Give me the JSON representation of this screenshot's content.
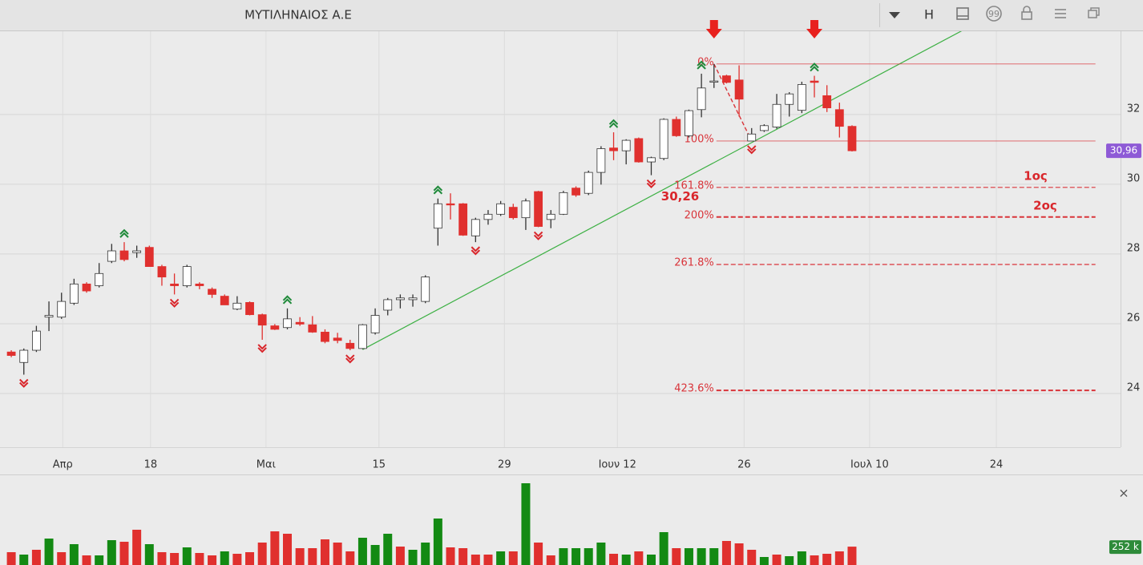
{
  "header": {
    "title": "ΜΥΤΙΛΗΝΑΙΟΣ Α.Ε",
    "button": "H"
  },
  "chart_data": {
    "type": "candlestick",
    "open": [
      25.19,
      24.89,
      25.24,
      26.19,
      26.19,
      26.59,
      27.14,
      27.09,
      27.79,
      28.09,
      28.04,
      28.19,
      27.64,
      27.14,
      27.09,
      27.14,
      26.99,
      26.79,
      26.42,
      26.61,
      26.26,
      25.94,
      25.89,
      26.04,
      25.97,
      25.76,
      25.59,
      25.44,
      25.29,
      25.74,
      26.39,
      26.69,
      26.69,
      26.64,
      28.74,
      29.44,
      29.44,
      28.52,
      28.99,
      29.14,
      29.34,
      29.04,
      29.79,
      28.99,
      29.14,
      29.89,
      29.74,
      30.34,
      31.04,
      30.96,
      31.31,
      30.64,
      30.74,
      31.86,
      31.39,
      32.14,
      32.94,
      33.11,
      32.99,
      31.24,
      31.54,
      31.64,
      32.29,
      32.12,
      32.96,
      32.54,
      32.14,
      31.66
    ],
    "high": [
      25.24,
      25.29,
      25.94,
      26.64,
      26.89,
      27.29,
      27.19,
      27.74,
      28.29,
      28.34,
      28.24,
      28.24,
      27.69,
      27.44,
      27.69,
      27.19,
      27.04,
      26.84,
      26.79,
      26.64,
      26.29,
      25.99,
      26.44,
      26.19,
      26.22,
      25.84,
      25.74,
      25.54,
      25.99,
      26.44,
      26.74,
      26.84,
      26.84,
      27.39,
      29.59,
      29.74,
      29.46,
      29.04,
      29.26,
      29.52,
      29.44,
      29.59,
      29.81,
      29.26,
      29.81,
      29.94,
      30.39,
      31.09,
      31.49,
      31.29,
      31.34,
      30.79,
      31.89,
      31.94,
      32.14,
      33.17,
      33.45,
      33.14,
      33.41,
      31.61,
      31.72,
      32.59,
      32.64,
      32.94,
      33.11,
      32.84,
      32.34,
      31.69
    ],
    "low": [
      25.04,
      24.54,
      25.19,
      25.79,
      26.14,
      26.54,
      26.89,
      27.04,
      27.74,
      27.79,
      27.89,
      27.64,
      27.09,
      26.84,
      27.04,
      26.99,
      26.74,
      26.54,
      26.39,
      26.24,
      25.54,
      25.82,
      25.84,
      25.94,
      25.74,
      25.44,
      25.44,
      25.24,
      25.27,
      25.69,
      26.24,
      26.44,
      26.49,
      26.59,
      28.24,
      28.99,
      28.52,
      28.34,
      28.84,
      29.09,
      28.99,
      28.69,
      28.77,
      28.74,
      29.12,
      29.64,
      29.69,
      29.99,
      30.69,
      30.57,
      30.62,
      30.26,
      30.69,
      31.36,
      31.34,
      31.92,
      32.76,
      32.89,
      31.94,
      31.24,
      31.5,
      31.59,
      31.94,
      32.04,
      32.49,
      32.07,
      31.34,
      30.94
    ],
    "close": [
      25.09,
      25.24,
      25.79,
      26.24,
      26.64,
      27.14,
      26.94,
      27.44,
      28.09,
      27.84,
      28.09,
      27.64,
      27.34,
      27.09,
      27.64,
      27.09,
      26.84,
      26.54,
      26.59,
      26.26,
      25.96,
      25.84,
      26.14,
      25.99,
      25.76,
      25.49,
      25.52,
      25.29,
      25.97,
      26.24,
      26.69,
      26.74,
      26.74,
      27.34,
      29.44,
      29.42,
      28.54,
      28.99,
      29.14,
      29.44,
      29.04,
      29.52,
      28.79,
      29.14,
      29.76,
      29.69,
      30.34,
      31.02,
      30.96,
      31.26,
      30.64,
      30.76,
      31.86,
      31.39,
      32.11,
      32.76,
      32.96,
      32.92,
      32.44,
      31.44,
      31.68,
      32.29,
      32.59,
      32.86,
      32.92,
      32.19,
      31.66,
      30.96
    ],
    "up_color": "#ffffff",
    "down_color": "#e0302e",
    "xlim": [
      -0.9,
      88.4
    ],
    "xticks": [
      {
        "value": 4.1,
        "label": "Απρ"
      },
      {
        "value": 11.1,
        "label": "18"
      },
      {
        "value": 20.3,
        "label": "Μαι"
      },
      {
        "value": 29.3,
        "label": "15"
      },
      {
        "value": 39.3,
        "label": "29"
      },
      {
        "value": 48.3,
        "label": "Ιουν 12"
      },
      {
        "value": 58.4,
        "label": "26"
      },
      {
        "value": 68.4,
        "label": "Ιουλ 10"
      },
      {
        "value": 78.5,
        "label": "24"
      }
    ],
    "ylim": [
      22.46,
      34.41
    ],
    "yticks": [
      24,
      26,
      28,
      30,
      32
    ],
    "grid": true,
    "last_price_label": "30,96",
    "last_price_color": "#8e5ad6",
    "up_fractals": [
      9,
      22,
      34,
      48,
      55,
      64
    ],
    "up_fractal_color": "#1f8a3a",
    "down_fractals": [
      1,
      13,
      20,
      27,
      37,
      42,
      51,
      59
    ],
    "down_fractal_color": "#d9262b",
    "arrows": [
      56,
      64
    ],
    "arrow_color": "#e8211e",
    "trendline": {
      "x": [
        28,
        75.8
      ],
      "y": [
        25.26,
        34.41
      ],
      "color": "#3cb043"
    },
    "fibonacci": {
      "from": 56,
      "to": 59,
      "end": 86.4,
      "color": "#d9343a",
      "levels": [
        {
          "value": 33.45,
          "label": "0%"
        },
        {
          "value": 31.24,
          "label": "100%"
        },
        {
          "value": 29.91,
          "label": "161.8%"
        },
        {
          "value": 29.06,
          "label": "200%"
        },
        {
          "value": 27.7,
          "label": "261.8%"
        },
        {
          "value": 24.09,
          "label": "423.6%"
        }
      ]
    },
    "annotations": [
      "1ος",
      "2ος"
    ],
    "low_label": {
      "value": 30.26,
      "label": "30,26"
    },
    "volume": {
      "values": [
        176,
        143,
        209,
        363,
        176,
        286,
        132,
        132,
        341,
        319,
        484,
        286,
        176,
        165,
        242,
        165,
        132,
        187,
        154,
        176,
        308,
        462,
        429,
        231,
        231,
        352,
        308,
        187,
        374,
        275,
        429,
        253,
        209,
        308,
        638,
        242,
        231,
        143,
        143,
        187,
        187,
        1122,
        308,
        132,
        231,
        231,
        231,
        308,
        154,
        143,
        187,
        143,
        451,
        231,
        231,
        231,
        231,
        330,
        297,
        209,
        110,
        143,
        121,
        187,
        132,
        154,
        187,
        252
      ],
      "colors": [
        "#e0302e",
        "#138a13",
        "#e0302e",
        "#138a13",
        "#e0302e",
        "#138a13",
        "#e0302e",
        "#138a13",
        "#138a13",
        "#e0302e",
        "#e0302e",
        "#138a13",
        "#e0302e",
        "#e0302e",
        "#138a13",
        "#e0302e",
        "#e0302e",
        "#138a13",
        "#e0302e",
        "#e0302e",
        "#e0302e",
        "#e0302e",
        "#e0302e",
        "#e0302e",
        "#e0302e",
        "#e0302e",
        "#e0302e",
        "#e0302e",
        "#138a13",
        "#138a13",
        "#138a13",
        "#e0302e",
        "#138a13",
        "#138a13",
        "#138a13",
        "#e0302e",
        "#e0302e",
        "#e0302e",
        "#e0302e",
        "#138a13",
        "#e0302e",
        "#138a13",
        "#e0302e",
        "#e0302e",
        "#138a13",
        "#138a13",
        "#138a13",
        "#138a13",
        "#e0302e",
        "#138a13",
        "#e0302e",
        "#138a13",
        "#138a13",
        "#e0302e",
        "#138a13",
        "#138a13",
        "#138a13",
        "#e0302e",
        "#e0302e",
        "#e0302e",
        "#138a13",
        "#e0302e",
        "#138a13",
        "#138a13",
        "#e0302e",
        "#e0302e",
        "#e0302e",
        "#e0302e"
      ],
      "ylim": [
        0,
        1210
      ],
      "last_label": "252 k",
      "last_label_color": "#2e8b3a"
    }
  }
}
